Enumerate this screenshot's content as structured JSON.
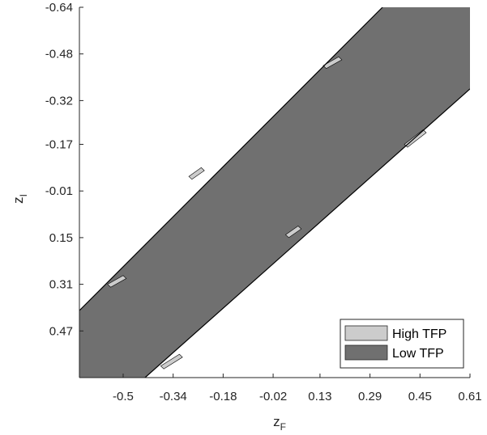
{
  "chart_data": {
    "type": "area",
    "title": "",
    "xlabel": "z",
    "xlabel_sub": "F",
    "ylabel": "z",
    "ylabel_sub": "I",
    "xlim": [
      -0.64,
      0.61
    ],
    "ylim": [
      -0.64,
      0.63
    ],
    "y_reversed": true,
    "grid": false,
    "x_ticks": [
      -0.5,
      -0.34,
      -0.18,
      -0.02,
      0.13,
      0.29,
      0.45,
      0.61
    ],
    "x_tick_labels": [
      "-0.5",
      "-0.34",
      "-0.18",
      "-0.02",
      "0.13",
      "0.29",
      "0.45",
      "0.61"
    ],
    "y_ticks": [
      -0.64,
      -0.48,
      -0.32,
      -0.17,
      -0.01,
      0.15,
      0.31,
      0.47
    ],
    "y_tick_labels": [
      "-0.64",
      "-0.48",
      "-0.32",
      "-0.17",
      "-0.01",
      "0.15",
      "0.31",
      "0.47"
    ],
    "legend_position": "bottom-right",
    "series": [
      {
        "name": "High TFP",
        "color": "#cccccc",
        "patches": [
          [
            [
              -0.55,
              0.31
            ],
            [
              -0.5,
              0.28
            ],
            [
              -0.49,
              0.29
            ],
            [
              -0.54,
              0.32
            ]
          ],
          [
            [
              -0.29,
              -0.06
            ],
            [
              -0.25,
              -0.09
            ],
            [
              -0.24,
              -0.08
            ],
            [
              -0.28,
              -0.05
            ]
          ],
          [
            [
              0.14,
              -0.44
            ],
            [
              0.19,
              -0.47
            ],
            [
              0.2,
              -0.46
            ],
            [
              0.15,
              -0.43
            ]
          ],
          [
            [
              -0.38,
              0.59
            ],
            [
              -0.32,
              0.55
            ],
            [
              -0.31,
              0.56
            ],
            [
              -0.37,
              0.6
            ]
          ],
          [
            [
              0.02,
              0.14
            ],
            [
              0.06,
              0.11
            ],
            [
              0.07,
              0.12
            ],
            [
              0.03,
              0.15
            ]
          ],
          [
            [
              0.4,
              -0.17
            ],
            [
              0.46,
              -0.22
            ],
            [
              0.47,
              -0.21
            ],
            [
              0.41,
              -0.16
            ]
          ]
        ]
      },
      {
        "name": "Low TFP",
        "color": "#707070",
        "region": [
          [
            -0.64,
            0.4
          ],
          [
            0.33,
            -0.64
          ],
          [
            0.61,
            -0.64
          ],
          [
            0.61,
            -0.36
          ],
          [
            -0.43,
            0.63
          ],
          [
            -0.64,
            0.63
          ]
        ]
      }
    ],
    "boundary_lines": [
      [
        [
          -0.64,
          0.4
        ],
        [
          0.33,
          -0.64
        ]
      ],
      [
        [
          -0.43,
          0.63
        ],
        [
          0.61,
          -0.36
        ]
      ]
    ]
  }
}
